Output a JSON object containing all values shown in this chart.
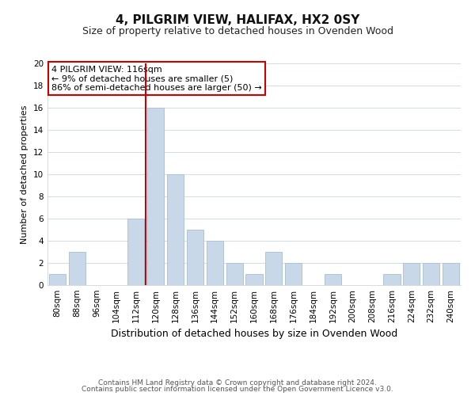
{
  "title": "4, PILGRIM VIEW, HALIFAX, HX2 0SY",
  "subtitle": "Size of property relative to detached houses in Ovenden Wood",
  "xlabel": "Distribution of detached houses by size in Ovenden Wood",
  "ylabel": "Number of detached properties",
  "bar_labels": [
    "80sqm",
    "88sqm",
    "96sqm",
    "104sqm",
    "112sqm",
    "120sqm",
    "128sqm",
    "136sqm",
    "144sqm",
    "152sqm",
    "160sqm",
    "168sqm",
    "176sqm",
    "184sqm",
    "192sqm",
    "200sqm",
    "208sqm",
    "216sqm",
    "224sqm",
    "232sqm",
    "240sqm"
  ],
  "bar_values": [
    1,
    3,
    0,
    0,
    6,
    16,
    10,
    5,
    4,
    2,
    1,
    3,
    2,
    0,
    1,
    0,
    0,
    1,
    2,
    2,
    2
  ],
  "bar_color": "#c8d8e8",
  "bar_edge_color": "#b0c4d8",
  "marker_line_index": 4.5,
  "marker_line_color": "#cc0000",
  "ylim": [
    0,
    20
  ],
  "yticks": [
    0,
    2,
    4,
    6,
    8,
    10,
    12,
    14,
    16,
    18,
    20
  ],
  "annotation_title": "4 PILGRIM VIEW: 116sqm",
  "annotation_line1": "← 9% of detached houses are smaller (5)",
  "annotation_line2": "86% of semi-detached houses are larger (50) →",
  "annotation_box_color": "#ffffff",
  "annotation_box_edge": "#cc0000",
  "footer_line1": "Contains HM Land Registry data © Crown copyright and database right 2024.",
  "footer_line2": "Contains public sector information licensed under the Open Government Licence v3.0.",
  "background_color": "#ffffff",
  "grid_color": "#d0dce8",
  "title_fontsize": 11,
  "subtitle_fontsize": 9,
  "ylabel_fontsize": 8,
  "xlabel_fontsize": 9,
  "tick_fontsize": 7.5,
  "annotation_fontsize": 8,
  "footer_fontsize": 6.5
}
